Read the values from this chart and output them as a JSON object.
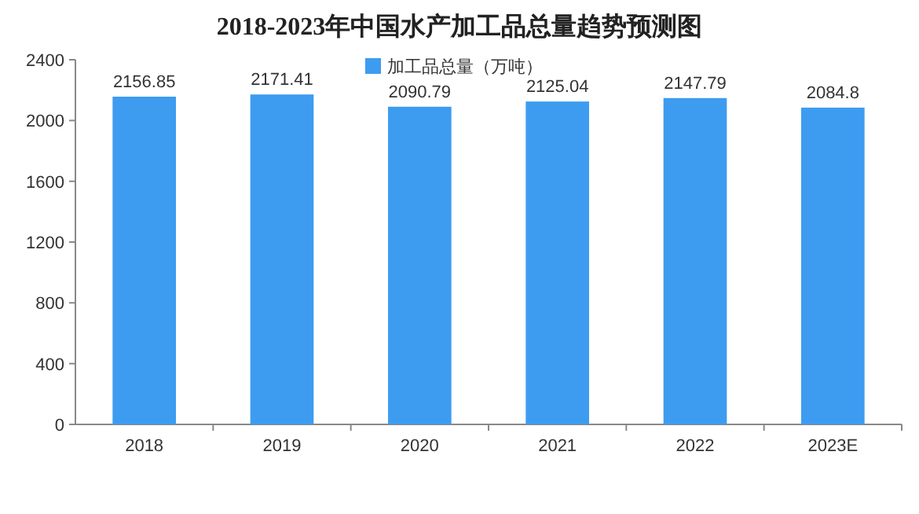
{
  "chart_data": {
    "type": "bar",
    "title": "2018-2023年中国水产加工品总量趋势预测图",
    "categories": [
      "2018",
      "2019",
      "2020",
      "2021",
      "2022",
      "2023E"
    ],
    "series": [
      {
        "name": "加工品总量（万吨）",
        "color": "#3d9cf0",
        "values": [
          2156.85,
          2171.41,
          2090.79,
          2125.04,
          2147.79,
          2084.8
        ]
      }
    ],
    "ylim": [
      0,
      2400
    ],
    "yticks": [
      0,
      400,
      800,
      1200,
      1600,
      2000,
      2400
    ],
    "data_labels": true,
    "legend": "top"
  }
}
